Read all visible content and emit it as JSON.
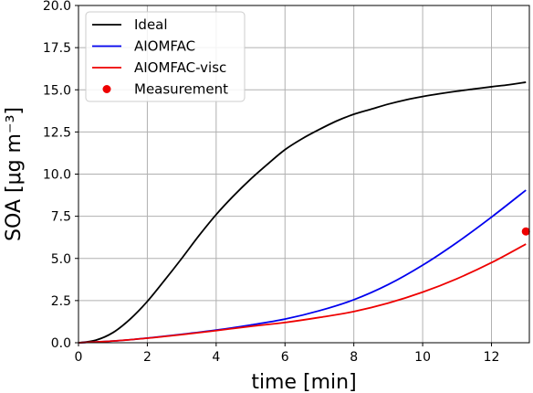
{
  "chart_data": {
    "type": "line",
    "xlabel": "time [min]",
    "ylabel": "SOA [μg m⁻³]",
    "xlim": [
      0,
      13.1
    ],
    "ylim": [
      0,
      20
    ],
    "x_ticks": [
      "0",
      "2",
      "4",
      "6",
      "8",
      "10",
      "12"
    ],
    "y_ticks": [
      "0.0",
      "2.5",
      "5.0",
      "7.5",
      "10.0",
      "12.5",
      "15.0",
      "17.5",
      "20.0"
    ],
    "grid": true,
    "legend_position": "top-left",
    "series": [
      {
        "name": "Ideal",
        "color": "#000000",
        "x": [
          0,
          0.5,
          1,
          1.5,
          2,
          2.5,
          3,
          3.5,
          4,
          4.5,
          5,
          5.5,
          6,
          6.5,
          7,
          7.5,
          8,
          8.5,
          9,
          9.5,
          10,
          10.5,
          11,
          11.5,
          12,
          12.5,
          13
        ],
        "y": [
          0,
          0.15,
          0.6,
          1.4,
          2.45,
          3.7,
          5.0,
          6.35,
          7.6,
          8.7,
          9.7,
          10.6,
          11.45,
          12.1,
          12.65,
          13.15,
          13.55,
          13.85,
          14.15,
          14.4,
          14.6,
          14.77,
          14.92,
          15.05,
          15.18,
          15.3,
          15.45
        ]
      },
      {
        "name": "AIOMFAC",
        "color": "#0000ee",
        "x": [
          0,
          1,
          2,
          3,
          4,
          5,
          6,
          7,
          8,
          9,
          10,
          11,
          12,
          13
        ],
        "y": [
          0,
          0.1,
          0.28,
          0.5,
          0.75,
          1.05,
          1.4,
          1.9,
          2.55,
          3.45,
          4.6,
          5.95,
          7.45,
          9.05
        ]
      },
      {
        "name": "AIOMFAC-visc",
        "color": "#ee0000",
        "x": [
          0,
          1,
          2,
          3,
          4,
          5,
          6,
          7,
          8,
          9,
          10,
          11,
          12,
          13
        ],
        "y": [
          0,
          0.1,
          0.27,
          0.48,
          0.72,
          0.97,
          1.2,
          1.5,
          1.85,
          2.35,
          3.0,
          3.8,
          4.75,
          5.85
        ]
      },
      {
        "name": "Measurement",
        "color": "#ee0000",
        "marker": "circle",
        "x": [
          13.0
        ],
        "y": [
          6.6
        ]
      }
    ]
  }
}
